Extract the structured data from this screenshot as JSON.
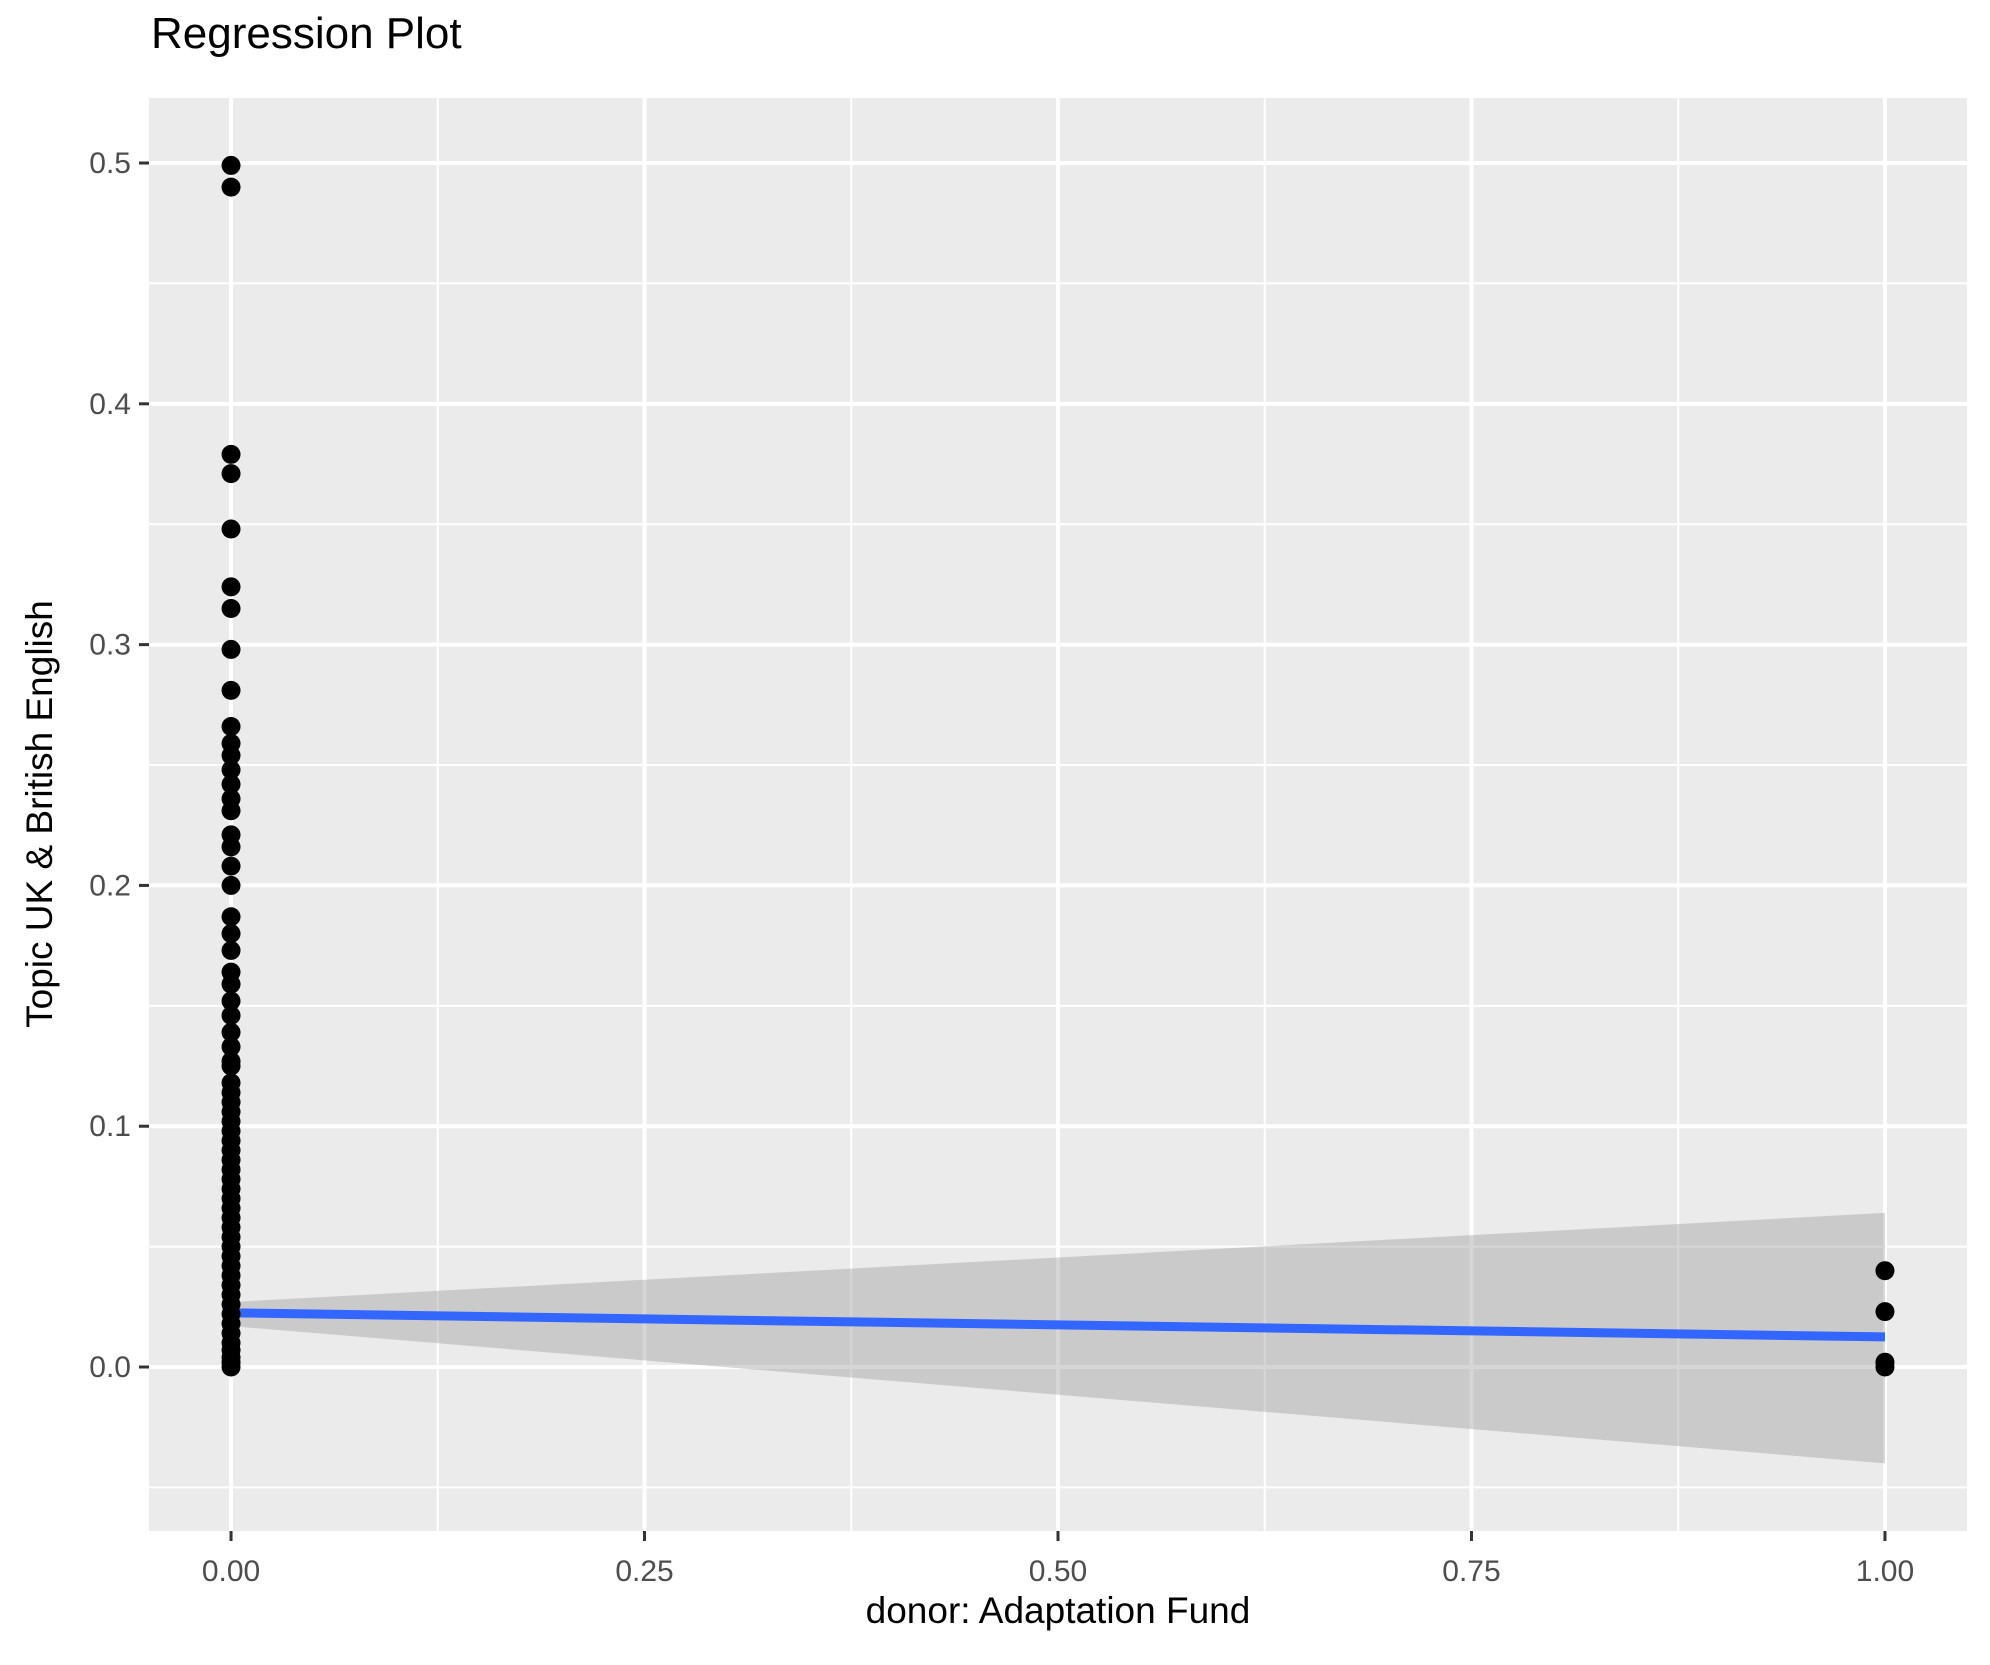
{
  "chart_data": {
    "type": "scatter",
    "title": "Regression Plot",
    "xlabel": "donor: Adaptation Fund",
    "ylabel": "Topic UK & British English",
    "xlim": [
      -0.0496,
      1.0496
    ],
    "ylim": [
      -0.0681,
      0.527
    ],
    "grid": true,
    "legend": "none",
    "x_ticks": [
      {
        "value": 0.0,
        "label": "0.00"
      },
      {
        "value": 0.25,
        "label": "0.25"
      },
      {
        "value": 0.5,
        "label": "0.50"
      },
      {
        "value": 0.75,
        "label": "0.75"
      },
      {
        "value": 1.0,
        "label": "1.00"
      }
    ],
    "y_ticks": [
      {
        "value": 0.0,
        "label": "0.0"
      },
      {
        "value": 0.1,
        "label": "0.1"
      },
      {
        "value": 0.2,
        "label": "0.2"
      },
      {
        "value": 0.3,
        "label": "0.3"
      },
      {
        "value": 0.4,
        "label": "0.4"
      },
      {
        "value": 0.5,
        "label": "0.5"
      }
    ],
    "x_minor_gridlines": [
      0.125,
      0.375,
      0.625,
      0.875
    ],
    "y_minor_gridlines": [
      -0.05,
      0.05,
      0.15,
      0.25,
      0.35,
      0.45
    ],
    "points": [
      [
        0,
        0.499
      ],
      [
        0,
        0.49
      ],
      [
        0,
        0.379
      ],
      [
        0,
        0.371
      ],
      [
        0,
        0.348
      ],
      [
        0,
        0.324
      ],
      [
        0,
        0.315
      ],
      [
        0,
        0.298
      ],
      [
        0,
        0.281
      ],
      [
        0,
        0.266
      ],
      [
        0,
        0.259
      ],
      [
        0,
        0.254
      ],
      [
        0,
        0.248
      ],
      [
        0,
        0.242
      ],
      [
        0,
        0.236
      ],
      [
        0,
        0.231
      ],
      [
        0,
        0.221
      ],
      [
        0,
        0.216
      ],
      [
        0,
        0.208
      ],
      [
        0,
        0.2
      ],
      [
        0,
        0.187
      ],
      [
        0,
        0.18
      ],
      [
        0,
        0.173
      ],
      [
        0,
        0.164
      ],
      [
        0,
        0.159
      ],
      [
        0,
        0.152
      ],
      [
        0,
        0.146
      ],
      [
        0,
        0.139
      ],
      [
        0,
        0.133
      ],
      [
        0,
        0.127
      ],
      [
        0,
        0.125
      ],
      [
        0,
        0.118
      ],
      [
        0,
        0.114
      ],
      [
        0,
        0.11
      ],
      [
        0,
        0.106
      ],
      [
        0,
        0.102
      ],
      [
        0,
        0.098
      ],
      [
        0,
        0.094
      ],
      [
        0,
        0.09
      ],
      [
        0,
        0.086
      ],
      [
        0,
        0.082
      ],
      [
        0,
        0.078
      ],
      [
        0,
        0.074
      ],
      [
        0,
        0.07
      ],
      [
        0,
        0.066
      ],
      [
        0,
        0.062
      ],
      [
        0,
        0.058
      ],
      [
        0,
        0.054
      ],
      [
        0,
        0.05
      ],
      [
        0,
        0.046
      ],
      [
        0,
        0.042
      ],
      [
        0,
        0.038
      ],
      [
        0,
        0.034
      ],
      [
        0,
        0.03
      ],
      [
        0,
        0.026
      ],
      [
        0,
        0.022
      ],
      [
        0,
        0.018
      ],
      [
        0,
        0.014
      ],
      [
        0,
        0.01
      ],
      [
        0,
        0.007
      ],
      [
        0,
        0.004
      ],
      [
        0,
        0.002
      ],
      [
        0,
        0.0
      ],
      [
        1,
        0.04
      ],
      [
        1,
        0.023
      ],
      [
        1,
        0.002
      ],
      [
        1,
        0.0
      ]
    ],
    "regression_line": {
      "x": [
        0,
        1
      ],
      "y": [
        0.0225,
        0.0125
      ],
      "color": "#3366FF"
    },
    "ci_ribbon": {
      "x": [
        0,
        1
      ],
      "upper": [
        0.027,
        0.064
      ],
      "lower": [
        0.017,
        -0.04
      ],
      "color": "#999999",
      "opacity": 0.4
    },
    "theme": {
      "panel_bg": "#EBEBEB",
      "grid_color": "#FFFFFF",
      "tick_color": "#333333",
      "tick_label_color": "#4D4D4D",
      "text_color": "#000000",
      "point_color": "#000000"
    }
  }
}
